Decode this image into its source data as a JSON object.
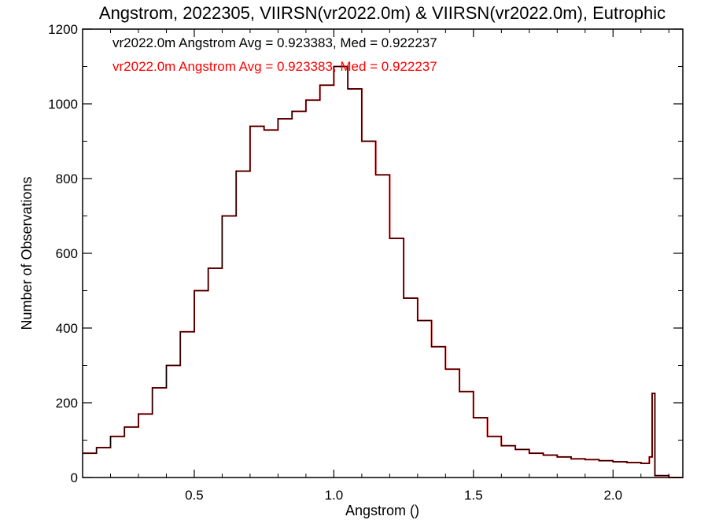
{
  "chart_data": {
    "type": "line",
    "title": "Angstrom, 2022305, VIIRSN(vr2022.0m) & VIIRSN(vr2022.0m), Eutrophic",
    "xlabel": "Angstrom ()",
    "ylabel": "Number of Observations",
    "xlim": [
      0.1,
      2.25
    ],
    "ylim": [
      0,
      1200
    ],
    "x_ticks": [
      "0.5",
      "1.0",
      "1.5",
      "2.0"
    ],
    "y_ticks": [
      "0",
      "200",
      "400",
      "600",
      "800",
      "1000",
      "1200"
    ],
    "annotations": [
      {
        "text": "vr2022.0m Angstrom Avg = 0.923383, Med = 0.922237",
        "color": "#000000"
      },
      {
        "text": "vr2022.0m Angstrom Avg = 0.923383, Med = 0.922237",
        "color": "#ff0000"
      }
    ],
    "colors": {
      "series_1": "#000000",
      "series_2": "#ff0000"
    },
    "series": [
      {
        "style": "histogram-step",
        "color": "#ff0000",
        "x": [
          0.1,
          0.15,
          0.2,
          0.25,
          0.3,
          0.35,
          0.4,
          0.45,
          0.5,
          0.55,
          0.6,
          0.65,
          0.7,
          0.75,
          0.8,
          0.85,
          0.9,
          0.95,
          1.0,
          1.05,
          1.1,
          1.15,
          1.2,
          1.25,
          1.3,
          1.35,
          1.4,
          1.45,
          1.5,
          1.55,
          1.6,
          1.65,
          1.7,
          1.75,
          1.8,
          1.85,
          1.9,
          1.95,
          2.0,
          2.05,
          2.1,
          2.13,
          2.14,
          2.15,
          2.2,
          2.25
        ],
        "values": [
          65,
          80,
          110,
          135,
          170,
          240,
          300,
          390,
          500,
          560,
          700,
          820,
          940,
          930,
          960,
          980,
          1010,
          1050,
          1100,
          1040,
          900,
          810,
          640,
          480,
          420,
          350,
          290,
          230,
          160,
          110,
          85,
          75,
          65,
          60,
          55,
          50,
          48,
          45,
          42,
          40,
          38,
          55,
          225,
          5,
          0,
          0
        ]
      },
      {
        "style": "histogram-step",
        "color": "#000000",
        "x": [
          0.1,
          0.15,
          0.2,
          0.25,
          0.3,
          0.35,
          0.4,
          0.45,
          0.5,
          0.55,
          0.6,
          0.65,
          0.7,
          0.75,
          0.8,
          0.85,
          0.9,
          0.95,
          1.0,
          1.05,
          1.1,
          1.15,
          1.2,
          1.25,
          1.3,
          1.35,
          1.4,
          1.45,
          1.5,
          1.55,
          1.6,
          1.65,
          1.7,
          1.75,
          1.8,
          1.85,
          1.9,
          1.95,
          2.0,
          2.05,
          2.1,
          2.13,
          2.14,
          2.15,
          2.2,
          2.25
        ],
        "values": [
          65,
          80,
          110,
          135,
          170,
          240,
          300,
          390,
          500,
          560,
          700,
          820,
          940,
          930,
          960,
          980,
          1010,
          1050,
          1100,
          1040,
          900,
          810,
          640,
          480,
          420,
          350,
          290,
          230,
          160,
          110,
          85,
          75,
          65,
          60,
          55,
          50,
          48,
          45,
          42,
          40,
          38,
          55,
          225,
          5,
          0,
          0
        ]
      }
    ]
  }
}
